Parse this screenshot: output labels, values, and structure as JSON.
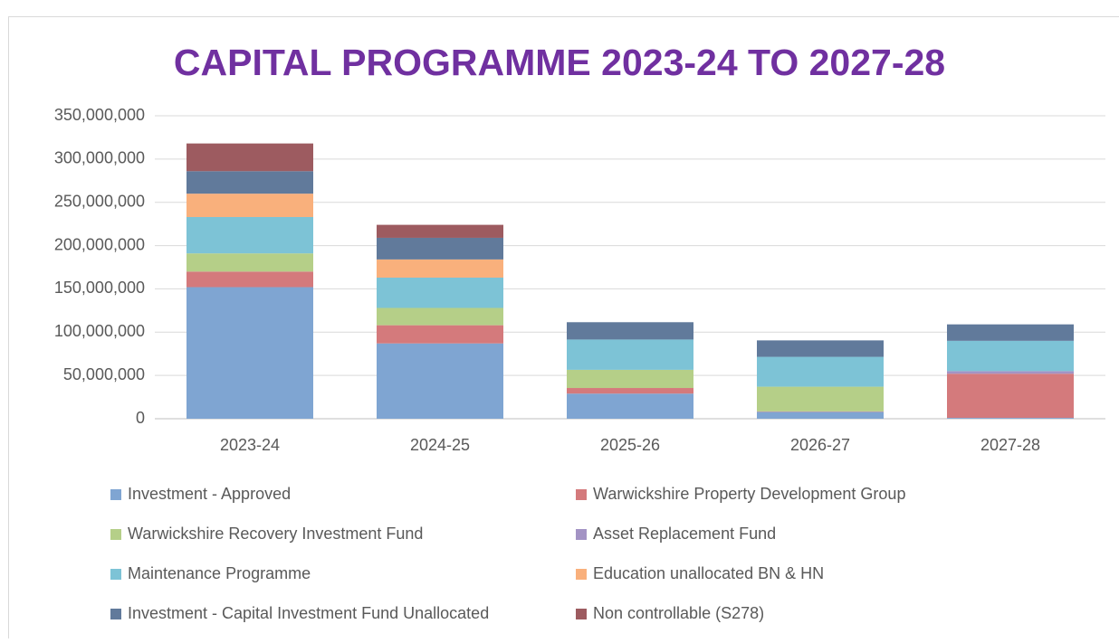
{
  "chart_data": {
    "type": "stacked_bar",
    "title": "CAPITAL PROGRAMME 2023-24 TO 2027-28",
    "categories": [
      "2023-24",
      "2024-25",
      "2025-26",
      "2026-27",
      "2027-28"
    ],
    "series": [
      {
        "name": "Investment - Approved",
        "color": "#7fa5d2",
        "values": [
          152000000,
          87000000,
          29000000,
          8000000,
          1000000
        ]
      },
      {
        "name": "Warwickshire Property Development Group",
        "color": "#d47a7c",
        "values": [
          18000000,
          21000000,
          6500000,
          500000,
          51000000
        ]
      },
      {
        "name": "Warwickshire Recovery Investment Fund",
        "color": "#b5cf88",
        "values": [
          21000000,
          20000000,
          21000000,
          28500000,
          0
        ]
      },
      {
        "name": "Asset Replacement Fund",
        "color": "#a393c4",
        "values": [
          0,
          0,
          0,
          0,
          3000000
        ]
      },
      {
        "name": "Maintenance Programme",
        "color": "#7dc3d6",
        "values": [
          42000000,
          35000000,
          35000000,
          34500000,
          35000000
        ]
      },
      {
        "name": "Education unallocated BN & HN",
        "color": "#f9b07c",
        "values": [
          27000000,
          21000000,
          0,
          0,
          0
        ]
      },
      {
        "name": "Investment - Capital Investment Fund Unallocated",
        "color": "#617a9b",
        "values": [
          26000000,
          25000000,
          20000000,
          19000000,
          19000000
        ]
      },
      {
        "name": "Non controllable (S278)",
        "color": "#9d5b60",
        "values": [
          32000000,
          15000000,
          0,
          0,
          0
        ]
      }
    ],
    "ylim": [
      0,
      350000000
    ],
    "yticks": [
      0,
      {
        "value": 50000000,
        "label": "50,000,000"
      },
      {
        "value": 100000000,
        "label": "100,000,000"
      },
      {
        "value": 150000000,
        "label": "150,000,000"
      },
      {
        "value": 200000000,
        "label": "200,000,000"
      },
      {
        "value": 250000000,
        "label": "250,000,000"
      },
      {
        "value": 300000000,
        "label": "300,000,000"
      },
      {
        "value": 350000000,
        "label": "350,000,000"
      }
    ],
    "grid": true
  }
}
